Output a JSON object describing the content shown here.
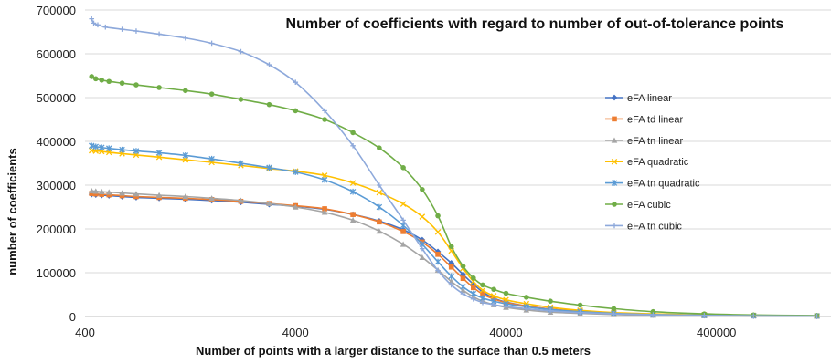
{
  "chart_data": {
    "type": "line",
    "title": "Number of coefficients with regard to number of out-of-tolerance points",
    "xlabel": "Number of points with a larger distance to the surface than 0.5 meters",
    "ylabel": "number of coefficients",
    "x_scale": "log",
    "xlim": [
      400,
      1400000
    ],
    "ylim": [
      0,
      700000
    ],
    "x_ticks": [
      400,
      4000,
      40000,
      400000
    ],
    "x_tick_labels": [
      "400",
      "4000",
      "40000",
      "400000"
    ],
    "y_ticks": [
      0,
      100000,
      200000,
      300000,
      400000,
      500000,
      600000,
      700000
    ],
    "y_tick_labels": [
      "0",
      "100000",
      "200000",
      "300000",
      "400000",
      "500000",
      "600000",
      "700000"
    ],
    "grid": "horizontal",
    "legend_position": "right",
    "series": [
      {
        "name": "eFA linear",
        "color": "#4472C4",
        "marker": "diamond",
        "points": [
          [
            430,
            279000
          ],
          [
            450,
            278000
          ],
          [
            480,
            277000
          ],
          [
            520,
            276000
          ],
          [
            600,
            274000
          ],
          [
            700,
            272000
          ],
          [
            900,
            270000
          ],
          [
            1200,
            268000
          ],
          [
            1600,
            265000
          ],
          [
            2200,
            261000
          ],
          [
            3000,
            256000
          ],
          [
            4000,
            252000
          ],
          [
            5500,
            245000
          ],
          [
            7500,
            233000
          ],
          [
            10000,
            218000
          ],
          [
            13000,
            198000
          ],
          [
            16000,
            175000
          ],
          [
            19000,
            148000
          ],
          [
            22000,
            122000
          ],
          [
            25000,
            96000
          ],
          [
            28000,
            74000
          ],
          [
            31000,
            56000
          ],
          [
            35000,
            42000
          ],
          [
            40000,
            33000
          ],
          [
            50000,
            24000
          ],
          [
            65000,
            17000
          ],
          [
            90000,
            11000
          ],
          [
            130000,
            7000
          ],
          [
            200000,
            4000
          ],
          [
            350000,
            2500
          ],
          [
            600000,
            1500
          ],
          [
            1200000,
            1000
          ]
        ]
      },
      {
        "name": "eFA td linear",
        "color": "#ED7D31",
        "marker": "square",
        "points": [
          [
            430,
            281000
          ],
          [
            450,
            280000
          ],
          [
            480,
            279000
          ],
          [
            520,
            278000
          ],
          [
            600,
            276000
          ],
          [
            700,
            274000
          ],
          [
            900,
            272000
          ],
          [
            1200,
            270000
          ],
          [
            1600,
            267000
          ],
          [
            2200,
            263000
          ],
          [
            3000,
            258000
          ],
          [
            4000,
            253000
          ],
          [
            5500,
            246000
          ],
          [
            7500,
            233000
          ],
          [
            10000,
            216000
          ],
          [
            13000,
            194000
          ],
          [
            16000,
            170000
          ],
          [
            19000,
            142000
          ],
          [
            22000,
            113000
          ],
          [
            25000,
            87000
          ],
          [
            28000,
            66000
          ],
          [
            31000,
            51000
          ],
          [
            35000,
            40000
          ],
          [
            40000,
            32000
          ],
          [
            50000,
            24000
          ],
          [
            65000,
            17000
          ],
          [
            90000,
            12000
          ],
          [
            130000,
            8000
          ],
          [
            200000,
            5000
          ],
          [
            350000,
            3000
          ],
          [
            600000,
            1800
          ],
          [
            1200000,
            1200
          ]
        ]
      },
      {
        "name": "eFA tn linear",
        "color": "#A5A5A5",
        "marker": "triangle",
        "points": [
          [
            430,
            287000
          ],
          [
            450,
            286000
          ],
          [
            480,
            285000
          ],
          [
            520,
            284000
          ],
          [
            600,
            282000
          ],
          [
            700,
            280000
          ],
          [
            900,
            277000
          ],
          [
            1200,
            274000
          ],
          [
            1600,
            270000
          ],
          [
            2200,
            265000
          ],
          [
            3000,
            258000
          ],
          [
            4000,
            250000
          ],
          [
            5500,
            238000
          ],
          [
            7500,
            220000
          ],
          [
            10000,
            195000
          ],
          [
            13000,
            165000
          ],
          [
            16000,
            135000
          ],
          [
            19000,
            106000
          ],
          [
            22000,
            80000
          ],
          [
            25000,
            60000
          ],
          [
            28000,
            45000
          ],
          [
            31000,
            35000
          ],
          [
            35000,
            27000
          ],
          [
            40000,
            21000
          ],
          [
            50000,
            15000
          ],
          [
            65000,
            10000
          ],
          [
            90000,
            7000
          ],
          [
            130000,
            4500
          ],
          [
            200000,
            3000
          ],
          [
            350000,
            2000
          ],
          [
            600000,
            1300
          ],
          [
            1200000,
            900
          ]
        ]
      },
      {
        "name": "eFA quadratic",
        "color": "#FFC000",
        "marker": "x",
        "points": [
          [
            430,
            379000
          ],
          [
            450,
            378000
          ],
          [
            480,
            377000
          ],
          [
            520,
            375000
          ],
          [
            600,
            372000
          ],
          [
            700,
            369000
          ],
          [
            900,
            364000
          ],
          [
            1200,
            358000
          ],
          [
            1600,
            352000
          ],
          [
            2200,
            345000
          ],
          [
            3000,
            338000
          ],
          [
            4000,
            332000
          ],
          [
            5500,
            322000
          ],
          [
            7500,
            305000
          ],
          [
            10000,
            283000
          ],
          [
            13000,
            257000
          ],
          [
            16000,
            228000
          ],
          [
            19000,
            193000
          ],
          [
            22000,
            150000
          ],
          [
            25000,
            110000
          ],
          [
            28000,
            80000
          ],
          [
            31000,
            60000
          ],
          [
            35000,
            47000
          ],
          [
            40000,
            38000
          ],
          [
            50000,
            29000
          ],
          [
            65000,
            21000
          ],
          [
            90000,
            14000
          ],
          [
            130000,
            9000
          ],
          [
            200000,
            6000
          ],
          [
            350000,
            3500
          ],
          [
            600000,
            2200
          ],
          [
            1200000,
            1400
          ]
        ]
      },
      {
        "name": "eFA tn quadratic",
        "color": "#5B9BD5",
        "marker": "asterisk",
        "points": [
          [
            430,
            390000
          ],
          [
            450,
            388000
          ],
          [
            480,
            386000
          ],
          [
            520,
            384000
          ],
          [
            600,
            381000
          ],
          [
            700,
            378000
          ],
          [
            900,
            374000
          ],
          [
            1200,
            368000
          ],
          [
            1600,
            360000
          ],
          [
            2200,
            350000
          ],
          [
            3000,
            340000
          ],
          [
            4000,
            330000
          ],
          [
            5500,
            312000
          ],
          [
            7500,
            285000
          ],
          [
            10000,
            250000
          ],
          [
            13000,
            208000
          ],
          [
            16000,
            165000
          ],
          [
            19000,
            125000
          ],
          [
            22000,
            92000
          ],
          [
            25000,
            68000
          ],
          [
            28000,
            52000
          ],
          [
            31000,
            42000
          ],
          [
            35000,
            35000
          ],
          [
            40000,
            29000
          ],
          [
            50000,
            22000
          ],
          [
            65000,
            16000
          ],
          [
            90000,
            11000
          ],
          [
            130000,
            7000
          ],
          [
            200000,
            4500
          ],
          [
            350000,
            2800
          ],
          [
            600000,
            1800
          ],
          [
            1200000,
            1200
          ]
        ]
      },
      {
        "name": "eFA cubic",
        "color": "#70AD47",
        "marker": "circle",
        "points": [
          [
            430,
            548000
          ],
          [
            450,
            543000
          ],
          [
            480,
            540000
          ],
          [
            520,
            537000
          ],
          [
            600,
            533000
          ],
          [
            700,
            529000
          ],
          [
            900,
            523000
          ],
          [
            1200,
            516000
          ],
          [
            1600,
            508000
          ],
          [
            2200,
            496000
          ],
          [
            3000,
            484000
          ],
          [
            4000,
            470000
          ],
          [
            5500,
            450000
          ],
          [
            7500,
            420000
          ],
          [
            10000,
            385000
          ],
          [
            13000,
            340000
          ],
          [
            16000,
            290000
          ],
          [
            19000,
            230000
          ],
          [
            22000,
            160000
          ],
          [
            25000,
            115000
          ],
          [
            28000,
            88000
          ],
          [
            31000,
            72000
          ],
          [
            35000,
            62000
          ],
          [
            40000,
            53000
          ],
          [
            50000,
            44000
          ],
          [
            65000,
            35000
          ],
          [
            90000,
            26000
          ],
          [
            130000,
            18000
          ],
          [
            200000,
            11000
          ],
          [
            350000,
            6000
          ],
          [
            600000,
            3500
          ],
          [
            1200000,
            2000
          ]
        ]
      },
      {
        "name": "eFA tn cubic",
        "color": "#8EA9DB",
        "marker": "plus",
        "points": [
          [
            430,
            680000
          ],
          [
            440,
            670000
          ],
          [
            460,
            666000
          ],
          [
            500,
            661000
          ],
          [
            600,
            656000
          ],
          [
            700,
            652000
          ],
          [
            900,
            645000
          ],
          [
            1200,
            636000
          ],
          [
            1600,
            624000
          ],
          [
            2200,
            605000
          ],
          [
            3000,
            575000
          ],
          [
            4000,
            535000
          ],
          [
            5500,
            470000
          ],
          [
            7500,
            390000
          ],
          [
            10000,
            300000
          ],
          [
            13000,
            220000
          ],
          [
            16000,
            155000
          ],
          [
            19000,
            105000
          ],
          [
            22000,
            72000
          ],
          [
            25000,
            52000
          ],
          [
            28000,
            40000
          ],
          [
            31000,
            32000
          ],
          [
            35000,
            27000
          ],
          [
            40000,
            23000
          ],
          [
            50000,
            18000
          ],
          [
            65000,
            13000
          ],
          [
            90000,
            9000
          ],
          [
            130000,
            6000
          ],
          [
            200000,
            4000
          ],
          [
            350000,
            2500
          ],
          [
            600000,
            1600
          ],
          [
            1200000,
            1000
          ]
        ]
      }
    ]
  }
}
